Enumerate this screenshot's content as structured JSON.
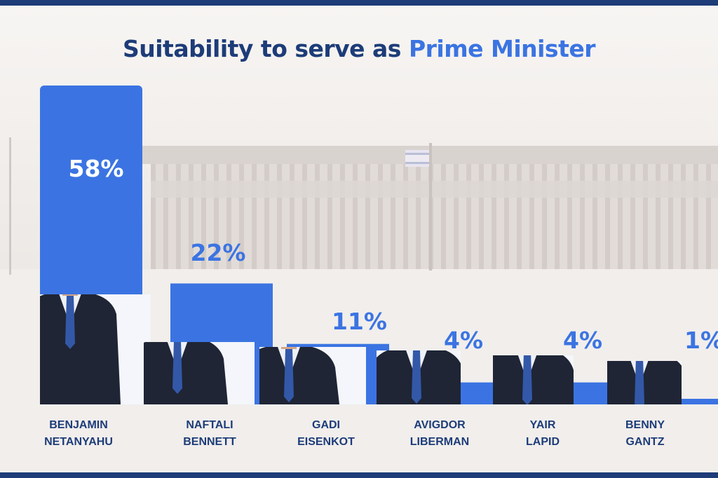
{
  "title": {
    "main": "Suitability to serve as",
    "highlight": "Prime Minister"
  },
  "colors": {
    "bar": "#3b74e2",
    "navy": "#1d3c78",
    "label_on_bar": "#ffffff",
    "label_off_bar": "#3b74e2"
  },
  "chart_data": {
    "type": "bar",
    "title": "Suitability to serve as Prime Minister",
    "categories": [
      [
        "BENJAMIN",
        "NETANYAHU"
      ],
      [
        "NAFTALI",
        "BENNETT"
      ],
      [
        "GADI",
        "EISENKOT"
      ],
      [
        "AVIGDOR",
        "LIBERMAN"
      ],
      [
        "YAIR",
        "LAPID"
      ],
      [
        "BENNY",
        "GANTZ"
      ]
    ],
    "values": [
      58,
      22,
      11,
      4,
      4,
      1
    ],
    "data_labels": [
      "58%",
      "22%",
      "11%",
      "4%",
      "4%",
      "1%"
    ],
    "ylim": [
      0,
      58
    ],
    "grid": false,
    "legend": "none"
  }
}
